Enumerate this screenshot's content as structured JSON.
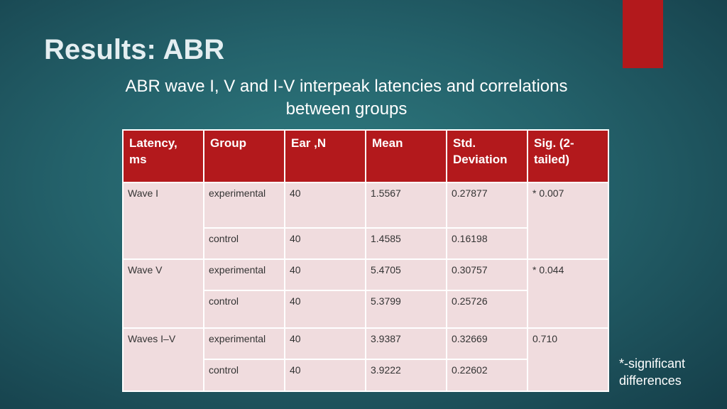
{
  "slide": {
    "title": "Results: ABR",
    "subtitle_line1": "ABR wave I, V and I-V interpeak latencies and correlations",
    "subtitle_line2": "between groups",
    "footnote_line1": "*-significant",
    "footnote_line2": "differences",
    "accent_color": "#b3191c"
  },
  "table": {
    "headers": {
      "latency_line1": "Latency,",
      "latency_line2": "ms",
      "group": "Group",
      "ear": "Ear ,N",
      "mean": "Mean",
      "std_line1": "Std.",
      "std_line2": "Deviation",
      "sig_line1": "Sig. (2-",
      "sig_line2": "tailed)"
    },
    "waves": [
      {
        "name": "Wave I",
        "sig": "* 0.007",
        "rows": [
          {
            "group": "experimental",
            "ear": "40",
            "mean": "1.5567",
            "std": "0.27877"
          },
          {
            "group": "control",
            "ear": "40",
            "mean": "1.4585",
            "std": "0.16198"
          }
        ]
      },
      {
        "name": "Wave V",
        "sig": "* 0.044",
        "rows": [
          {
            "group": "experimental",
            "ear": "40",
            "mean": "5.4705",
            "std": "0.30757"
          },
          {
            "group": "control",
            "ear": "40",
            "mean": "5.3799",
            "std": "0.25726"
          }
        ]
      },
      {
        "name": "Waves I–V",
        "sig": "0.710",
        "rows": [
          {
            "group": "experimental",
            "ear": "40",
            "mean": "3.9387",
            "std": "0.32669"
          },
          {
            "group": "control",
            "ear": "40",
            "mean": "3.9222",
            "std": "0.22602"
          }
        ]
      }
    ]
  }
}
